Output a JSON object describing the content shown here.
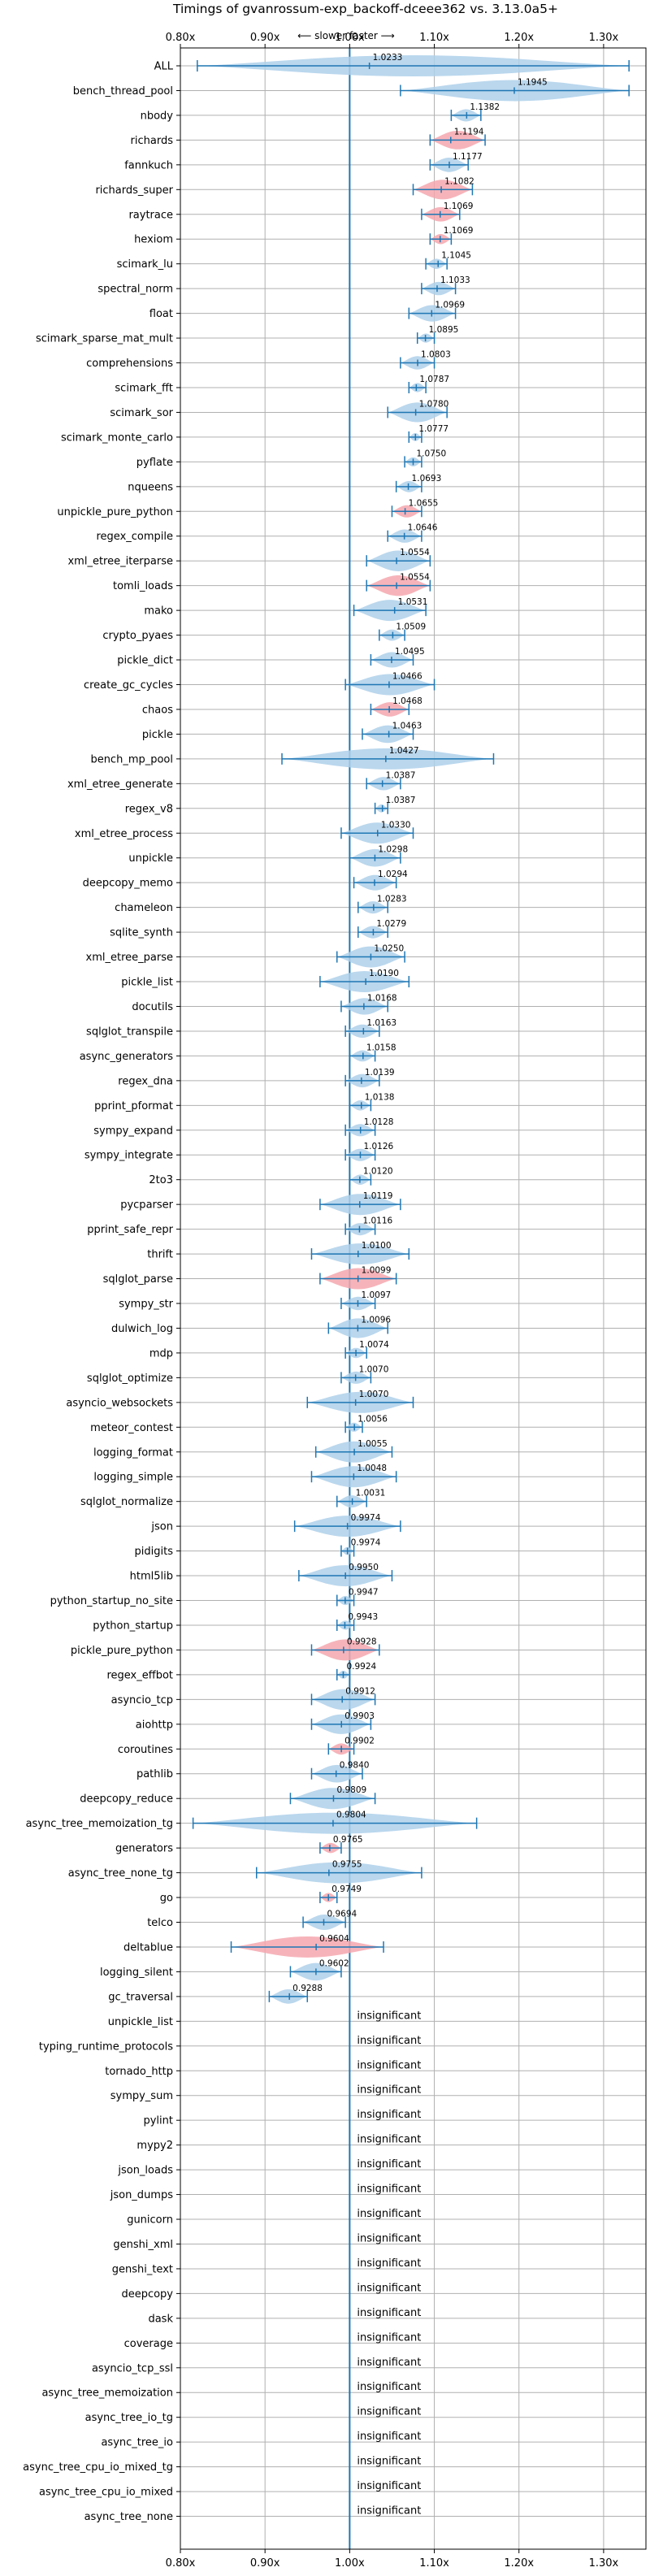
{
  "chart_data": {
    "type": "violin",
    "title": "Timings of gvanrossum-exp_backoff-dceee362 vs. 3.13.0a5+",
    "direction_label": "⟵ slower   faster ⟶",
    "xlim": [
      0.8,
      1.35
    ],
    "xticks": [
      0.8,
      0.9,
      1.0,
      1.1,
      1.2,
      1.3
    ],
    "xtick_labels": [
      "0.80x",
      "0.90x",
      "1.00x",
      "1.10x",
      "1.20x",
      "1.30x"
    ],
    "grid": true,
    "colors": {
      "faster": "#aed0ea",
      "slower": "#f4a7ae",
      "errorbar": "#1f77b4",
      "reference_line": "#1f77b4"
    },
    "insignificant_label": "insignificant",
    "benchmarks": [
      {
        "name": "ALL",
        "value": 1.0233,
        "lo": 0.82,
        "hi": 1.33,
        "status": "faster"
      },
      {
        "name": "bench_thread_pool",
        "value": 1.1945,
        "lo": 1.06,
        "hi": 1.33,
        "status": "faster"
      },
      {
        "name": "nbody",
        "value": 1.1382,
        "lo": 1.12,
        "hi": 1.155,
        "status": "faster"
      },
      {
        "name": "richards",
        "value": 1.1194,
        "lo": 1.095,
        "hi": 1.16,
        "status": "slower"
      },
      {
        "name": "fannkuch",
        "value": 1.1177,
        "lo": 1.095,
        "hi": 1.14,
        "status": "faster"
      },
      {
        "name": "richards_super",
        "value": 1.1082,
        "lo": 1.075,
        "hi": 1.145,
        "status": "slower"
      },
      {
        "name": "raytrace",
        "value": 1.1069,
        "lo": 1.085,
        "hi": 1.13,
        "status": "slower"
      },
      {
        "name": "hexiom",
        "value": 1.1069,
        "lo": 1.095,
        "hi": 1.12,
        "status": "slower"
      },
      {
        "name": "scimark_lu",
        "value": 1.1045,
        "lo": 1.09,
        "hi": 1.115,
        "status": "faster"
      },
      {
        "name": "spectral_norm",
        "value": 1.1033,
        "lo": 1.085,
        "hi": 1.125,
        "status": "faster"
      },
      {
        "name": "float",
        "value": 1.0969,
        "lo": 1.07,
        "hi": 1.125,
        "status": "faster"
      },
      {
        "name": "scimark_sparse_mat_mult",
        "value": 1.0895,
        "lo": 1.08,
        "hi": 1.1,
        "status": "faster"
      },
      {
        "name": "comprehensions",
        "value": 1.0803,
        "lo": 1.06,
        "hi": 1.1,
        "status": "faster"
      },
      {
        "name": "scimark_fft",
        "value": 1.0787,
        "lo": 1.07,
        "hi": 1.09,
        "status": "faster"
      },
      {
        "name": "scimark_sor",
        "value": 1.078,
        "lo": 1.045,
        "hi": 1.115,
        "status": "faster"
      },
      {
        "name": "scimark_monte_carlo",
        "value": 1.0777,
        "lo": 1.07,
        "hi": 1.085,
        "status": "faster"
      },
      {
        "name": "pyflate",
        "value": 1.075,
        "lo": 1.065,
        "hi": 1.085,
        "status": "faster"
      },
      {
        "name": "nqueens",
        "value": 1.0693,
        "lo": 1.055,
        "hi": 1.085,
        "status": "faster"
      },
      {
        "name": "unpickle_pure_python",
        "value": 1.0655,
        "lo": 1.05,
        "hi": 1.085,
        "status": "slower"
      },
      {
        "name": "regex_compile",
        "value": 1.0646,
        "lo": 1.045,
        "hi": 1.085,
        "status": "faster"
      },
      {
        "name": "xml_etree_iterparse",
        "value": 1.0554,
        "lo": 1.02,
        "hi": 1.095,
        "status": "faster"
      },
      {
        "name": "tomli_loads",
        "value": 1.0554,
        "lo": 1.02,
        "hi": 1.095,
        "status": "slower"
      },
      {
        "name": "mako",
        "value": 1.0531,
        "lo": 1.005,
        "hi": 1.09,
        "status": "faster"
      },
      {
        "name": "crypto_pyaes",
        "value": 1.0509,
        "lo": 1.035,
        "hi": 1.065,
        "status": "faster"
      },
      {
        "name": "pickle_dict",
        "value": 1.0495,
        "lo": 1.025,
        "hi": 1.075,
        "status": "faster"
      },
      {
        "name": "create_gc_cycles",
        "value": 1.0466,
        "lo": 0.995,
        "hi": 1.1,
        "status": "faster"
      },
      {
        "name": "chaos",
        "value": 1.0468,
        "lo": 1.025,
        "hi": 1.07,
        "status": "slower"
      },
      {
        "name": "pickle",
        "value": 1.0463,
        "lo": 1.015,
        "hi": 1.075,
        "status": "faster"
      },
      {
        "name": "bench_mp_pool",
        "value": 1.0427,
        "lo": 0.92,
        "hi": 1.17,
        "status": "faster"
      },
      {
        "name": "xml_etree_generate",
        "value": 1.0387,
        "lo": 1.02,
        "hi": 1.06,
        "status": "faster"
      },
      {
        "name": "regex_v8",
        "value": 1.0387,
        "lo": 1.03,
        "hi": 1.045,
        "status": "faster"
      },
      {
        "name": "xml_etree_process",
        "value": 1.033,
        "lo": 0.99,
        "hi": 1.075,
        "status": "faster"
      },
      {
        "name": "unpickle",
        "value": 1.0298,
        "lo": 1.0,
        "hi": 1.06,
        "status": "faster"
      },
      {
        "name": "deepcopy_memo",
        "value": 1.0294,
        "lo": 1.005,
        "hi": 1.055,
        "status": "faster"
      },
      {
        "name": "chameleon",
        "value": 1.0283,
        "lo": 1.01,
        "hi": 1.045,
        "status": "faster"
      },
      {
        "name": "sqlite_synth",
        "value": 1.0279,
        "lo": 1.01,
        "hi": 1.045,
        "status": "faster"
      },
      {
        "name": "xml_etree_parse",
        "value": 1.025,
        "lo": 0.985,
        "hi": 1.065,
        "status": "faster"
      },
      {
        "name": "pickle_list",
        "value": 1.019,
        "lo": 0.965,
        "hi": 1.07,
        "status": "faster"
      },
      {
        "name": "docutils",
        "value": 1.0168,
        "lo": 0.99,
        "hi": 1.045,
        "status": "faster"
      },
      {
        "name": "sqlglot_transpile",
        "value": 1.0163,
        "lo": 0.995,
        "hi": 1.035,
        "status": "faster"
      },
      {
        "name": "async_generators",
        "value": 1.0158,
        "lo": 1.0,
        "hi": 1.03,
        "status": "faster"
      },
      {
        "name": "regex_dna",
        "value": 1.0139,
        "lo": 0.995,
        "hi": 1.035,
        "status": "faster"
      },
      {
        "name": "pprint_pformat",
        "value": 1.0138,
        "lo": 1.0,
        "hi": 1.025,
        "status": "faster"
      },
      {
        "name": "sympy_expand",
        "value": 1.0128,
        "lo": 0.995,
        "hi": 1.03,
        "status": "faster"
      },
      {
        "name": "sympy_integrate",
        "value": 1.0126,
        "lo": 0.995,
        "hi": 1.03,
        "status": "faster"
      },
      {
        "name": "2to3",
        "value": 1.012,
        "lo": 1.0,
        "hi": 1.025,
        "status": "faster"
      },
      {
        "name": "pycparser",
        "value": 1.0119,
        "lo": 0.965,
        "hi": 1.06,
        "status": "faster"
      },
      {
        "name": "pprint_safe_repr",
        "value": 1.0116,
        "lo": 0.995,
        "hi": 1.03,
        "status": "faster"
      },
      {
        "name": "thrift",
        "value": 1.01,
        "lo": 0.955,
        "hi": 1.07,
        "status": "faster"
      },
      {
        "name": "sqlglot_parse",
        "value": 1.0099,
        "lo": 0.965,
        "hi": 1.055,
        "status": "slower"
      },
      {
        "name": "sympy_str",
        "value": 1.0097,
        "lo": 0.99,
        "hi": 1.03,
        "status": "faster"
      },
      {
        "name": "dulwich_log",
        "value": 1.0096,
        "lo": 0.975,
        "hi": 1.045,
        "status": "faster"
      },
      {
        "name": "mdp",
        "value": 1.0074,
        "lo": 0.995,
        "hi": 1.02,
        "status": "faster"
      },
      {
        "name": "sqlglot_optimize",
        "value": 1.007,
        "lo": 0.99,
        "hi": 1.025,
        "status": "faster"
      },
      {
        "name": "asyncio_websockets",
        "value": 1.007,
        "lo": 0.95,
        "hi": 1.075,
        "status": "faster"
      },
      {
        "name": "meteor_contest",
        "value": 1.0056,
        "lo": 0.995,
        "hi": 1.015,
        "status": "faster"
      },
      {
        "name": "logging_format",
        "value": 1.0055,
        "lo": 0.96,
        "hi": 1.05,
        "status": "faster"
      },
      {
        "name": "logging_simple",
        "value": 1.0048,
        "lo": 0.955,
        "hi": 1.055,
        "status": "faster"
      },
      {
        "name": "sqlglot_normalize",
        "value": 1.0031,
        "lo": 0.985,
        "hi": 1.02,
        "status": "faster"
      },
      {
        "name": "json",
        "value": 0.9974,
        "lo": 0.935,
        "hi": 1.06,
        "status": "faster"
      },
      {
        "name": "pidigits",
        "value": 0.9974,
        "lo": 0.99,
        "hi": 1.005,
        "status": "faster"
      },
      {
        "name": "html5lib",
        "value": 0.995,
        "lo": 0.94,
        "hi": 1.05,
        "status": "faster"
      },
      {
        "name": "python_startup_no_site",
        "value": 0.9947,
        "lo": 0.985,
        "hi": 1.005,
        "status": "faster"
      },
      {
        "name": "python_startup",
        "value": 0.9943,
        "lo": 0.985,
        "hi": 1.005,
        "status": "faster"
      },
      {
        "name": "pickle_pure_python",
        "value": 0.9928,
        "lo": 0.955,
        "hi": 1.035,
        "status": "slower"
      },
      {
        "name": "regex_effbot",
        "value": 0.9924,
        "lo": 0.985,
        "hi": 1.0,
        "status": "faster"
      },
      {
        "name": "asyncio_tcp",
        "value": 0.9912,
        "lo": 0.955,
        "hi": 1.03,
        "status": "faster"
      },
      {
        "name": "aiohttp",
        "value": 0.9903,
        "lo": 0.955,
        "hi": 1.025,
        "status": "faster"
      },
      {
        "name": "coroutines",
        "value": 0.9902,
        "lo": 0.975,
        "hi": 1.005,
        "status": "slower"
      },
      {
        "name": "pathlib",
        "value": 0.984,
        "lo": 0.955,
        "hi": 1.015,
        "status": "faster"
      },
      {
        "name": "deepcopy_reduce",
        "value": 0.9809,
        "lo": 0.93,
        "hi": 1.03,
        "status": "faster"
      },
      {
        "name": "async_tree_memoization_tg",
        "value": 0.9804,
        "lo": 0.815,
        "hi": 1.15,
        "status": "faster"
      },
      {
        "name": "generators",
        "value": 0.9765,
        "lo": 0.965,
        "hi": 0.99,
        "status": "slower"
      },
      {
        "name": "async_tree_none_tg",
        "value": 0.9755,
        "lo": 0.89,
        "hi": 1.085,
        "status": "faster"
      },
      {
        "name": "go",
        "value": 0.9749,
        "lo": 0.965,
        "hi": 0.985,
        "status": "slower"
      },
      {
        "name": "telco",
        "value": 0.9694,
        "lo": 0.945,
        "hi": 0.995,
        "status": "faster"
      },
      {
        "name": "deltablue",
        "value": 0.9604,
        "lo": 0.86,
        "hi": 1.04,
        "status": "slower"
      },
      {
        "name": "logging_silent",
        "value": 0.9602,
        "lo": 0.93,
        "hi": 0.99,
        "status": "faster"
      },
      {
        "name": "gc_traversal",
        "value": 0.9288,
        "lo": 0.905,
        "hi": 0.95,
        "status": "faster"
      },
      {
        "name": "unpickle_list",
        "value": null,
        "status": "insignificant"
      },
      {
        "name": "typing_runtime_protocols",
        "value": null,
        "status": "insignificant"
      },
      {
        "name": "tornado_http",
        "value": null,
        "status": "insignificant"
      },
      {
        "name": "sympy_sum",
        "value": null,
        "status": "insignificant"
      },
      {
        "name": "pylint",
        "value": null,
        "status": "insignificant"
      },
      {
        "name": "mypy2",
        "value": null,
        "status": "insignificant"
      },
      {
        "name": "json_loads",
        "value": null,
        "status": "insignificant"
      },
      {
        "name": "json_dumps",
        "value": null,
        "status": "insignificant"
      },
      {
        "name": "gunicorn",
        "value": null,
        "status": "insignificant"
      },
      {
        "name": "genshi_xml",
        "value": null,
        "status": "insignificant"
      },
      {
        "name": "genshi_text",
        "value": null,
        "status": "insignificant"
      },
      {
        "name": "deepcopy",
        "value": null,
        "status": "insignificant"
      },
      {
        "name": "dask",
        "value": null,
        "status": "insignificant"
      },
      {
        "name": "coverage",
        "value": null,
        "status": "insignificant"
      },
      {
        "name": "asyncio_tcp_ssl",
        "value": null,
        "status": "insignificant"
      },
      {
        "name": "async_tree_memoization",
        "value": null,
        "status": "insignificant"
      },
      {
        "name": "async_tree_io_tg",
        "value": null,
        "status": "insignificant"
      },
      {
        "name": "async_tree_io",
        "value": null,
        "status": "insignificant"
      },
      {
        "name": "async_tree_cpu_io_mixed_tg",
        "value": null,
        "status": "insignificant"
      },
      {
        "name": "async_tree_cpu_io_mixed",
        "value": null,
        "status": "insignificant"
      },
      {
        "name": "async_tree_none",
        "value": null,
        "status": "insignificant"
      }
    ]
  }
}
